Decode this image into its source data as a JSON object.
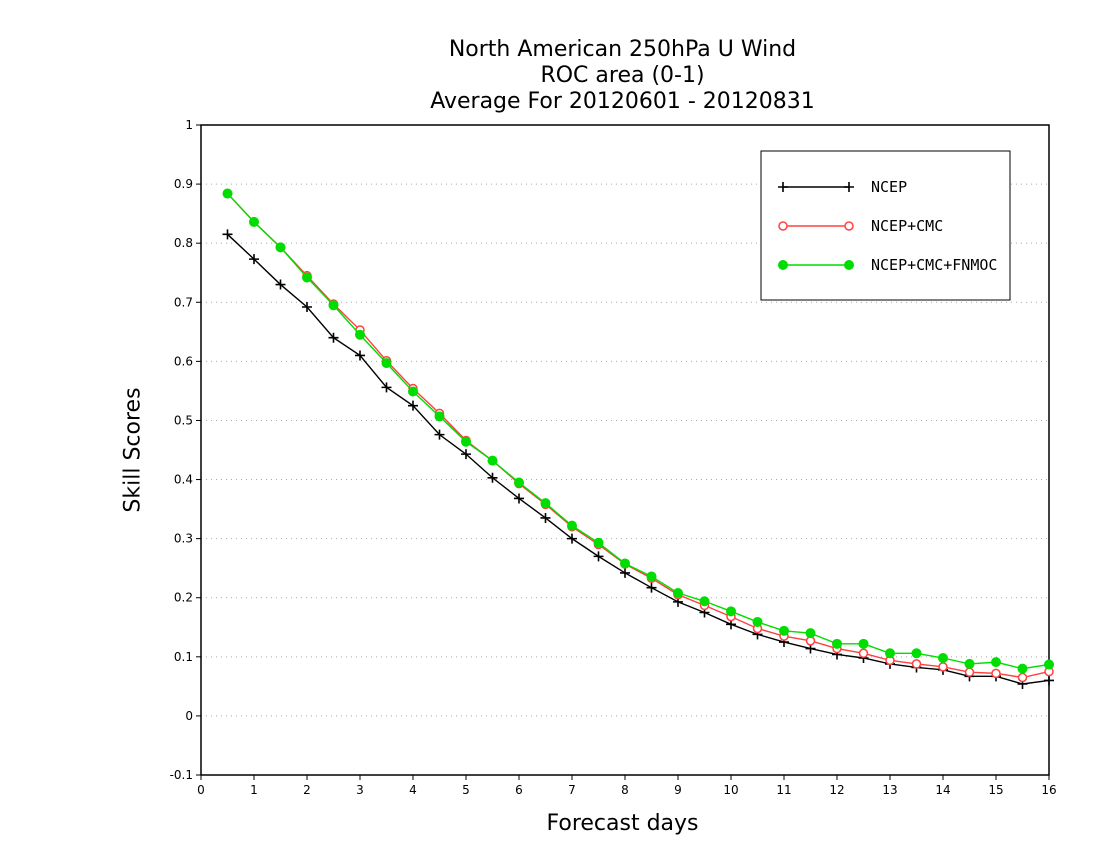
{
  "chart_data": {
    "type": "line",
    "title": [
      "North American 250hPa U Wind",
      "ROC area (0-1)",
      "Average For 20120601 - 20120831"
    ],
    "xlabel": "Forecast days",
    "ylabel": "Skill Scores",
    "xlim": [
      0,
      16
    ],
    "ylim": [
      -0.1,
      1
    ],
    "xticks": [
      "0",
      "1",
      "2",
      "3",
      "4",
      "5",
      "6",
      "7",
      "8",
      "9",
      "10",
      "11",
      "12",
      "13",
      "14",
      "15",
      "16"
    ],
    "yticks": [
      "-0.1",
      "0",
      "0.1",
      "0.2",
      "0.3",
      "0.4",
      "0.5",
      "0.6",
      "0.7",
      "0.8",
      "0.9",
      "1"
    ],
    "grid": "y-dotted",
    "legend_position": "top-right",
    "x": [
      0.5,
      1,
      1.5,
      2,
      2.5,
      3,
      3.5,
      4,
      4.5,
      5,
      5.5,
      6,
      6.5,
      7,
      7.5,
      8,
      8.5,
      9,
      9.5,
      10,
      10.5,
      11,
      11.5,
      12,
      12.5,
      13,
      13.5,
      14,
      14.5,
      15,
      15.5,
      16
    ],
    "series": [
      {
        "name": "NCEP",
        "color": "#000000",
        "marker": "plus",
        "values": [
          0.815,
          0.773,
          0.73,
          0.692,
          0.64,
          0.61,
          0.556,
          0.525,
          0.476,
          0.443,
          0.403,
          0.368,
          0.335,
          0.3,
          0.27,
          0.242,
          0.217,
          0.193,
          0.175,
          0.155,
          0.138,
          0.125,
          0.114,
          0.104,
          0.098,
          0.088,
          0.082,
          0.078,
          0.067,
          0.067,
          0.054,
          0.06
        ]
      },
      {
        "name": "NCEP+CMC",
        "color": "#ff4040",
        "marker": "open-circle",
        "values": [
          0.884,
          0.836,
          0.793,
          0.745,
          0.697,
          0.653,
          0.601,
          0.554,
          0.512,
          0.466,
          0.432,
          0.393,
          0.358,
          0.32,
          0.29,
          0.257,
          0.233,
          0.205,
          0.187,
          0.168,
          0.148,
          0.135,
          0.127,
          0.114,
          0.106,
          0.094,
          0.088,
          0.083,
          0.074,
          0.072,
          0.065,
          0.075
        ]
      },
      {
        "name": "NCEP+CMC+FNMOC",
        "color": "#00dd00",
        "marker": "filled-circle",
        "values": [
          0.884,
          0.836,
          0.793,
          0.742,
          0.695,
          0.645,
          0.597,
          0.549,
          0.507,
          0.464,
          0.432,
          0.395,
          0.36,
          0.322,
          0.293,
          0.258,
          0.236,
          0.208,
          0.194,
          0.177,
          0.159,
          0.144,
          0.14,
          0.122,
          0.122,
          0.106,
          0.106,
          0.098,
          0.088,
          0.091,
          0.08,
          0.087
        ]
      }
    ]
  }
}
